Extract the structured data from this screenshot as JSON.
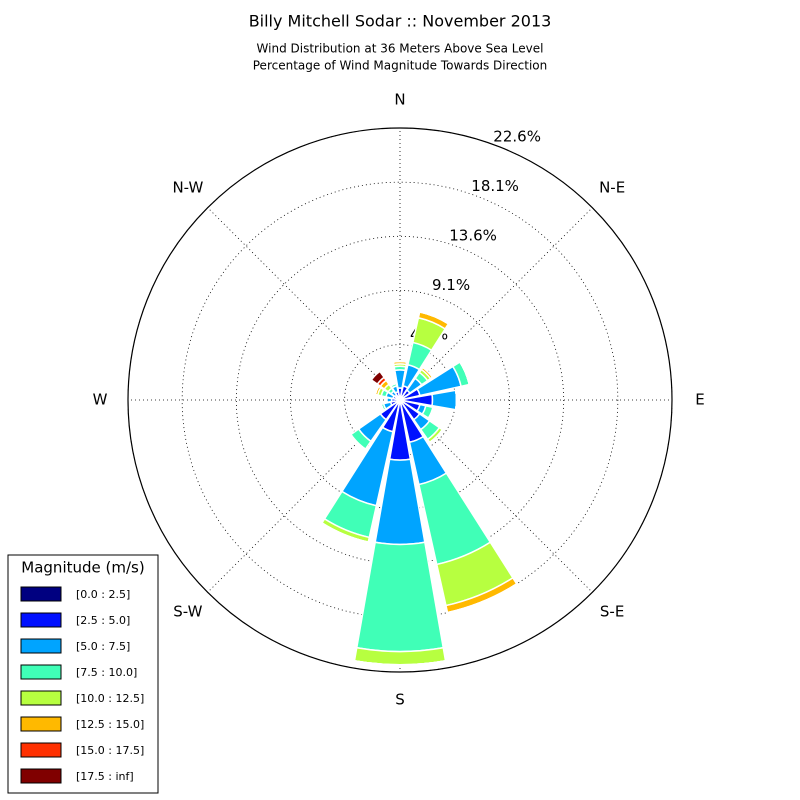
{
  "chart_data": {
    "type": "windrose",
    "title": "Billy Mitchell Sodar :: November 2013",
    "subtitle": [
      "Wind Distribution at 36 Meters Above Sea Level",
      "Percentage of Wind Magnitude Towards Direction"
    ],
    "categories": [
      "N",
      null,
      "N-E",
      null,
      "E",
      null,
      "S-E",
      null,
      "S",
      null,
      "S-W",
      null,
      "W",
      null,
      "N-W",
      null
    ],
    "rlim": [
      0,
      22.6
    ],
    "rticks": [
      {
        "value": 4.6,
        "label": "4.6%"
      },
      {
        "value": 9.1,
        "label": "9.1%"
      },
      {
        "value": 13.6,
        "label": "13.6%"
      },
      {
        "value": 18.1,
        "label": "18.1%"
      },
      {
        "value": 22.6,
        "label": "22.6%"
      }
    ],
    "grid": true,
    "legend_title": "Magnitude (m/s)",
    "legend_position": "lower left",
    "series": [
      {
        "name": "[0.0 : 2.5]",
        "color": "#000080",
        "values": [
          0.2,
          0.2,
          0.2,
          0.2,
          0.3,
          0.2,
          0.2,
          0.2,
          0.3,
          0.2,
          0.2,
          0.2,
          0.2,
          0.2,
          0.2,
          0.2
        ]
      },
      {
        "name": "[2.5 : 5.0]",
        "color": "#0010ff",
        "values": [
          0.8,
          1.0,
          0.8,
          1.5,
          2.4,
          1.5,
          1.8,
          3.4,
          4.7,
          2.5,
          1.8,
          0.6,
          0.5,
          0.4,
          0.3,
          0.5
        ]
      },
      {
        "name": "[5.0 : 7.5]",
        "color": "#00a4ff",
        "values": [
          1.5,
          1.8,
          1.2,
          3.5,
          2.0,
          0.5,
          1.0,
          3.6,
          7.0,
          6.3,
          2.2,
          0.6,
          0.4,
          0.6,
          0.4,
          0.5
        ]
      },
      {
        "name": "[7.5 : 10.0]",
        "color": "#40ffb7",
        "values": [
          0.3,
          1.9,
          0.6,
          0.7,
          0,
          0.6,
          1.0,
          6.8,
          8.9,
          2.7,
          0.8,
          0.2,
          0,
          0.4,
          0.3,
          0.2
        ]
      },
      {
        "name": "[10.0 : 12.5]",
        "color": "#b7ff40",
        "values": [
          0.2,
          2.1,
          0.3,
          0,
          0,
          0.1,
          0.3,
          3.5,
          1.1,
          0.4,
          0,
          0,
          0,
          0.3,
          0.4,
          0.1
        ]
      },
      {
        "name": "[12.5 : 15.0]",
        "color": "#ffb900",
        "values": [
          0.2,
          0.5,
          0.2,
          0,
          0,
          0,
          0,
          0.6,
          0,
          0,
          0,
          0,
          0,
          0.2,
          0.4,
          0
        ]
      },
      {
        "name": "[15.0 : 17.5]",
        "color": "#ff3000",
        "values": [
          0,
          0,
          0,
          0,
          0,
          0,
          0,
          0,
          0,
          0,
          0,
          0,
          0,
          0,
          0.3,
          0
        ]
      },
      {
        "name": "[17.5 : inf]",
        "color": "#800000",
        "values": [
          0,
          0,
          0,
          0,
          0,
          0,
          0,
          0,
          0,
          0,
          0,
          0,
          0,
          0,
          0.6,
          0
        ]
      }
    ]
  }
}
